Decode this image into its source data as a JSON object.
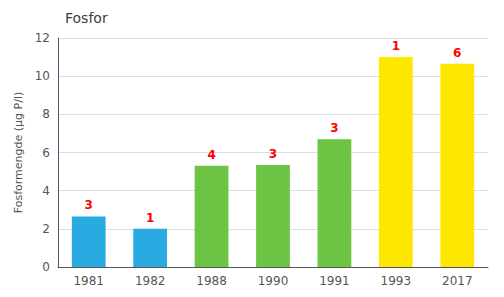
{
  "chart_data": {
    "type": "bar",
    "title": "Fosfor",
    "ylabel": "Fosformengde (µg P/l)",
    "categories": [
      "1981",
      "1982",
      "1988",
      "1990",
      "1991",
      "1993",
      "2017"
    ],
    "values": [
      2.65,
      2.0,
      5.3,
      5.35,
      6.7,
      11.0,
      10.65
    ],
    "colors": [
      "#29ABE2",
      "#29ABE2",
      "#6DC444",
      "#6DC444",
      "#6DC444",
      "#FFE800",
      "#FFE800"
    ],
    "annotations": [
      {
        "text": "3",
        "color": "#FF0000"
      },
      {
        "text": "1",
        "color": "#FF0000"
      },
      {
        "text": "4",
        "color": "#FF0000"
      },
      {
        "text": "3",
        "color": "#FF0000"
      },
      {
        "text": "3",
        "color": "#FF0000"
      },
      {
        "text": "1",
        "color": "#FF0000"
      },
      {
        "text": "6",
        "color": "#FF0000"
      }
    ],
    "ylim": [
      0,
      12
    ],
    "yticks": [
      0,
      2,
      4,
      6,
      8,
      10,
      12
    ],
    "grid": true
  }
}
